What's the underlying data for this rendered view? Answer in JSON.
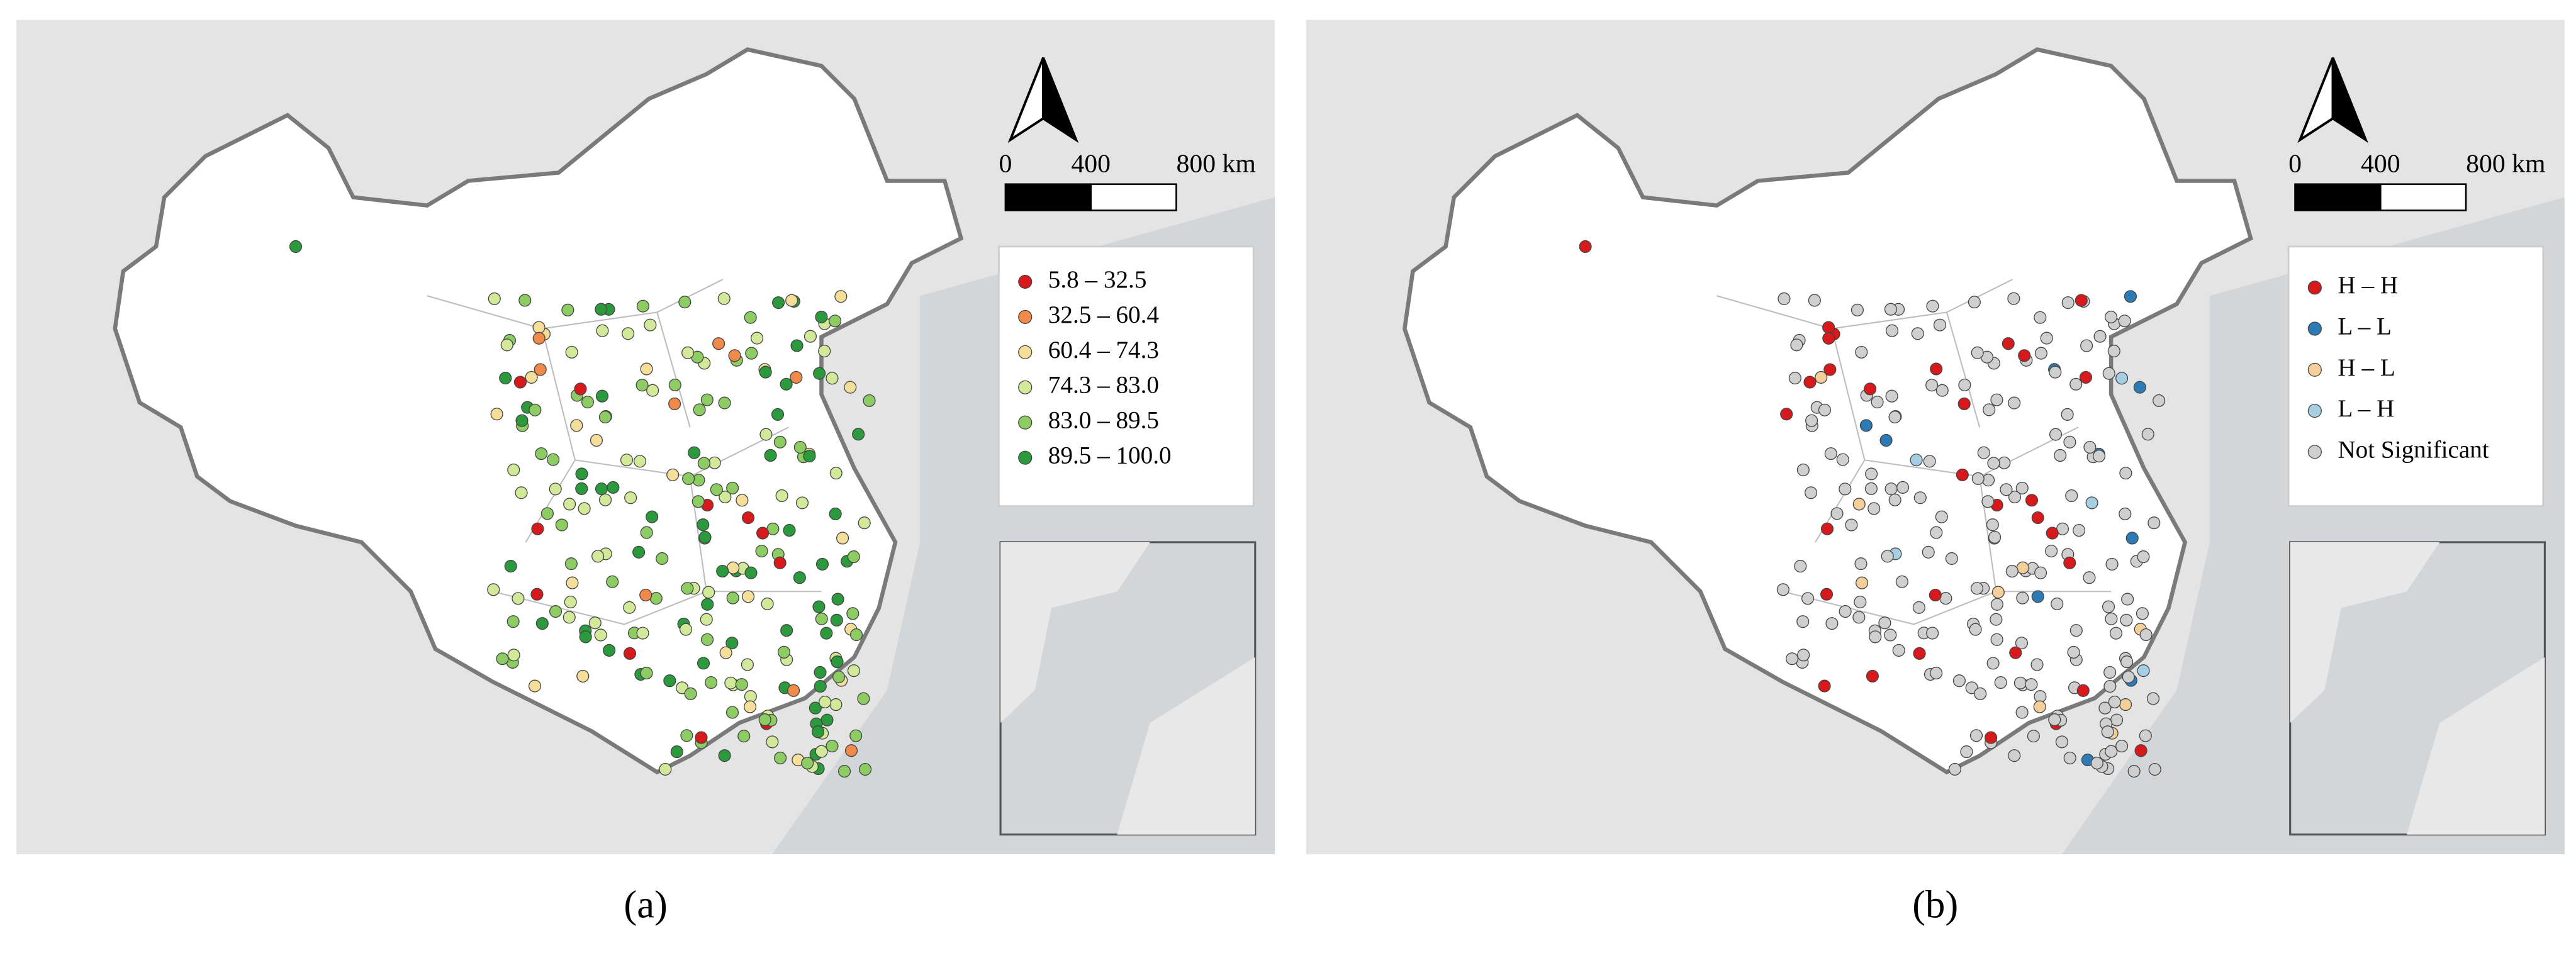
{
  "panels": [
    {
      "caption": "(a)",
      "scale_bar": {
        "labels": [
          "0",
          "400",
          "800 km"
        ]
      },
      "legend": {
        "items": [
          {
            "label": "5.8 – 32.5",
            "color": "#d7191c"
          },
          {
            "label": "32.5 – 60.4",
            "color": "#f08a4b"
          },
          {
            "label": "60.4 – 74.3",
            "color": "#f5dd9a"
          },
          {
            "label": "74.3 – 83.0",
            "color": "#d3e99a"
          },
          {
            "label": "83.0 – 89.5",
            "color": "#8ccc62"
          },
          {
            "label": "89.5 – 100.0",
            "color": "#2a9a3c"
          }
        ]
      }
    },
    {
      "caption": "(b)",
      "scale_bar": {
        "labels": [
          "0",
          "400",
          "800 km"
        ]
      },
      "legend": {
        "items": [
          {
            "label": "H – H",
            "color": "#d7191c"
          },
          {
            "label": "L – L",
            "color": "#2c7bb6"
          },
          {
            "label": "H – L",
            "color": "#f5cf9a"
          },
          {
            "label": "L – H",
            "color": "#a6cfe3"
          },
          {
            "label": "Not Significant",
            "color": "#cfcfcf"
          }
        ]
      }
    }
  ]
}
